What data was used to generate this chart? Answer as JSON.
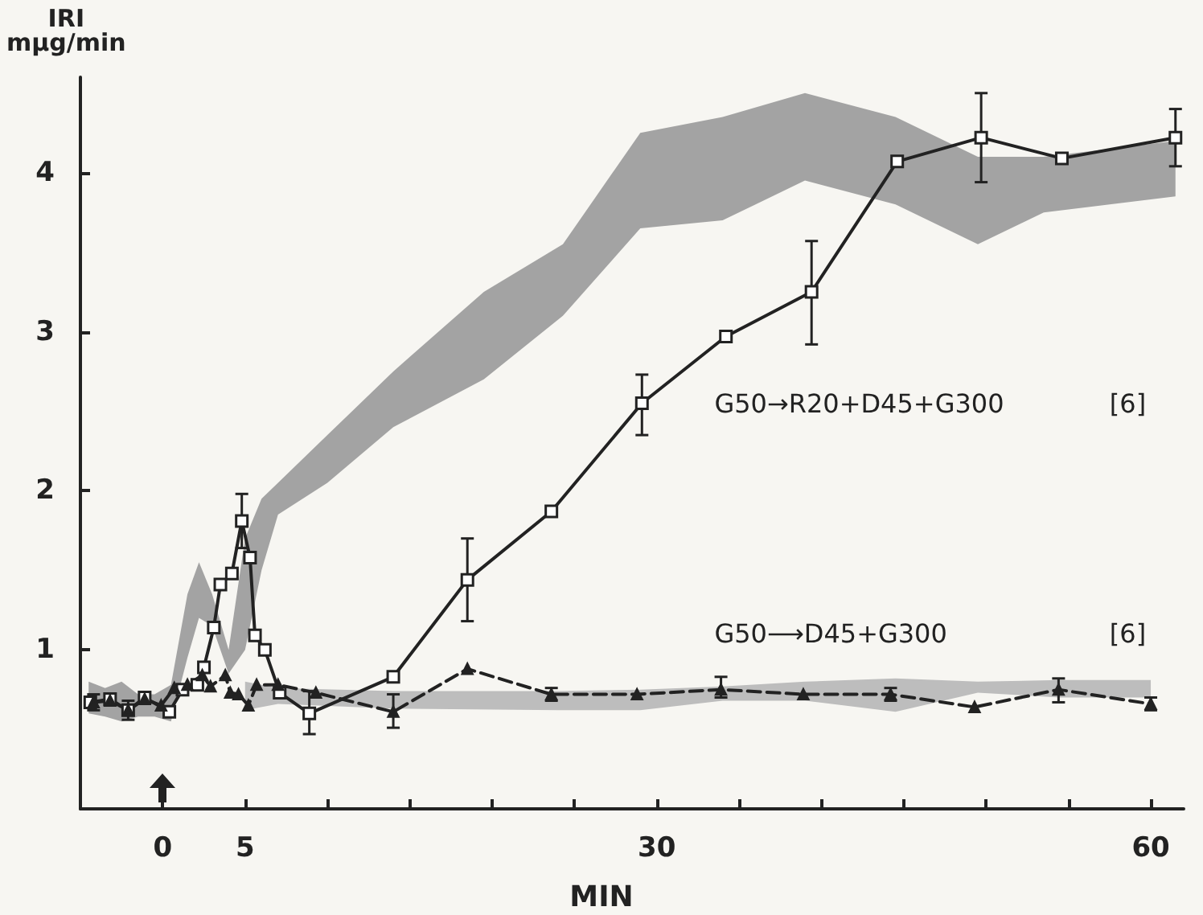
{
  "chart_data": {
    "type": "line",
    "xlabel": "MIN",
    "ylabel": "IRI mμg/min",
    "xlim": [
      -5,
      62
    ],
    "ylim": [
      0,
      4.6
    ],
    "xticks": [
      0,
      5,
      {
        "value": 10,
        "label": null
      },
      {
        "value": 15,
        "label": null
      },
      {
        "value": 20,
        "label": null
      },
      {
        "value": 25,
        "label": null
      },
      30,
      {
        "value": 35,
        "label": null
      },
      {
        "value": 40,
        "label": null
      },
      {
        "value": 45,
        "label": null
      },
      {
        "value": 50,
        "label": null
      },
      {
        "value": 55,
        "label": null
      },
      60
    ],
    "yticks": [
      1,
      2,
      3,
      4
    ],
    "grid": false,
    "legend": false,
    "series": [
      {
        "type": "area",
        "color": "#a3a3a3",
        "values": [
          null,
          null,
          null,
          null,
          null,
          null,
          null,
          null,
          null,
          null,
          null,
          null,
          null,
          null,
          null,
          null,
          null,
          null,
          null,
          null,
          null,
          null,
          null,
          null
        ],
        "x": [
          -4.5,
          -3.5,
          -2.5,
          -1.5,
          -0.5,
          0.5,
          1.5,
          2.2,
          3,
          4,
          5,
          6,
          7,
          10,
          14,
          19.5,
          24.3,
          29,
          34,
          39,
          44.5,
          49.5,
          53.5,
          61.5
        ],
        "lower": [
          0.6,
          0.58,
          0.55,
          0.58,
          0.58,
          0.55,
          0.95,
          1.2,
          1.15,
          0.85,
          1.0,
          1.5,
          1.85,
          2.05,
          2.4,
          2.7,
          3.1,
          3.65,
          3.7,
          3.95,
          3.8,
          3.55,
          3.75,
          3.85
        ],
        "upper": [
          0.8,
          0.76,
          0.8,
          0.72,
          0.72,
          0.78,
          1.35,
          1.55,
          1.35,
          1.0,
          1.7,
          1.95,
          2.05,
          2.35,
          2.75,
          3.25,
          3.55,
          4.25,
          4.35,
          4.5,
          4.35,
          4.1,
          4.1,
          4.2
        ]
      },
      {
        "type": "area",
        "color": "#bdbdbd",
        "values": [
          null,
          null,
          null,
          null,
          null,
          null,
          null,
          null,
          null,
          null,
          null
        ],
        "x": [
          5,
          7,
          14,
          24,
          29,
          34,
          39,
          44.5,
          49.5,
          54.5,
          60
        ],
        "lower": [
          0.62,
          0.66,
          0.63,
          0.62,
          0.62,
          0.68,
          0.68,
          0.61,
          0.73,
          0.7,
          0.7
        ],
        "upper": [
          0.8,
          0.76,
          0.74,
          0.74,
          0.75,
          0.77,
          0.8,
          0.82,
          0.8,
          0.81,
          0.81
        ]
      },
      {
        "name": "G50→R20+D45+G300",
        "color": "#222222",
        "marker": "square",
        "line_style": "solid",
        "x": [
          -4.4,
          -3.2,
          -2.1,
          -1.1,
          0.4,
          1.2,
          2.1,
          2.5,
          3.1,
          3.5,
          4.2,
          4.8,
          5.3,
          5.6,
          6.2,
          7.1,
          8.9,
          14,
          18.5,
          23.6,
          29.1,
          34.2,
          39.4,
          44.6,
          49.7,
          54.6,
          61.5
        ],
        "values": [
          0.67,
          0.69,
          0.62,
          0.7,
          0.61,
          0.75,
          0.78,
          0.89,
          1.14,
          1.41,
          1.48,
          1.81,
          1.58,
          1.09,
          1.0,
          0.73,
          0.6,
          0.83,
          1.44,
          1.87,
          2.55,
          2.97,
          3.25,
          4.07,
          4.22,
          4.09,
          4.22
        ],
        "errors": [
          null,
          null,
          null,
          null,
          null,
          null,
          null,
          null,
          null,
          null,
          null,
          0.17,
          null,
          null,
          null,
          null,
          [
            0.47,
            0.74
          ],
          null,
          [
            1.18,
            1.7
          ],
          null,
          [
            2.35,
            2.73
          ],
          null,
          [
            2.92,
            3.57
          ],
          null,
          [
            3.94,
            4.5
          ],
          null,
          [
            4.04,
            4.4
          ]
        ]
      },
      {
        "name": "G50⟶D45+G300",
        "color": "#222222",
        "marker": "triangle",
        "line_style": "dashed",
        "x": [
          -4.2,
          -3.2,
          -2.1,
          -1.1,
          -0.1,
          0.7,
          1.5,
          2.4,
          2.9,
          3.8,
          4.1,
          4.6,
          5.2,
          5.7,
          7.0,
          9.3,
          14,
          18.5,
          23.6,
          28.8,
          33.9,
          38.9,
          44.2,
          49.3,
          54.4,
          60
        ],
        "values": [
          0.67,
          0.68,
          0.62,
          0.69,
          0.65,
          0.76,
          0.78,
          0.84,
          0.77,
          0.84,
          0.73,
          0.72,
          0.65,
          0.78,
          0.78,
          0.73,
          0.61,
          0.88,
          0.72,
          0.72,
          0.75,
          0.72,
          0.72,
          0.64,
          0.75,
          0.66
        ],
        "errors": [
          0.05,
          null,
          0.06,
          null,
          null,
          null,
          null,
          null,
          null,
          null,
          null,
          null,
          null,
          null,
          null,
          null,
          [
            0.51,
            0.72
          ],
          null,
          0.04,
          null,
          [
            0.7,
            0.83
          ],
          null,
          0.04,
          null,
          [
            0.67,
            0.82
          ],
          0.04
        ]
      }
    ],
    "annotations": [
      "[6]",
      "[6]"
    ]
  }
}
